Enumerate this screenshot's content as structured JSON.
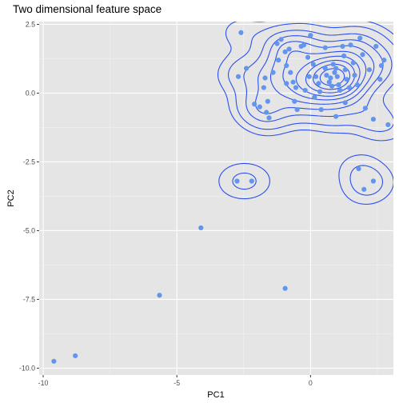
{
  "chart_data": {
    "type": "scatter",
    "title": "Two dimensional feature space",
    "xlabel": "PC1",
    "ylabel": "PC2",
    "xlim": [
      -10.15,
      3.1
    ],
    "ylim": [
      -10.25,
      2.6
    ],
    "x_ticks": [
      -10,
      -5,
      0
    ],
    "x_tick_labels": [
      "-10",
      "-5",
      "0"
    ],
    "y_ticks": [
      2.5,
      0,
      -2.5,
      -5,
      -7.5,
      -10
    ],
    "y_tick_labels": [
      "2.5",
      "0.0",
      "-2.5",
      "-5.0",
      "-7.5",
      "-10.0"
    ],
    "grid": true,
    "point_color": "#6495ed",
    "contour_color": "#2b50f0",
    "panel_background": "#e5e5e5",
    "points": [
      {
        "x": -9.6,
        "y": -9.75
      },
      {
        "x": -8.8,
        "y": -9.55
      },
      {
        "x": -5.65,
        "y": -7.35
      },
      {
        "x": -4.1,
        "y": -4.9
      },
      {
        "x": -2.75,
        "y": -3.2
      },
      {
        "x": -2.2,
        "y": -3.2
      },
      {
        "x": -0.95,
        "y": -7.1
      },
      {
        "x": 1.8,
        "y": -2.75
      },
      {
        "x": 2.0,
        "y": -3.5
      },
      {
        "x": 2.35,
        "y": -3.2
      },
      {
        "x": -2.6,
        "y": 2.2
      },
      {
        "x": -2.7,
        "y": 0.6
      },
      {
        "x": -2.4,
        "y": 0.9
      },
      {
        "x": -2.1,
        "y": -0.4
      },
      {
        "x": -1.9,
        "y": -0.5
      },
      {
        "x": -1.65,
        "y": -0.7
      },
      {
        "x": -1.55,
        "y": -0.9
      },
      {
        "x": -1.7,
        "y": 0.55
      },
      {
        "x": -1.75,
        "y": 0.2
      },
      {
        "x": -1.6,
        "y": -0.3
      },
      {
        "x": -1.4,
        "y": 0.75
      },
      {
        "x": -1.25,
        "y": 1.8
      },
      {
        "x": -1.1,
        "y": 1.95
      },
      {
        "x": -0.95,
        "y": 1.5
      },
      {
        "x": -0.8,
        "y": 1.6
      },
      {
        "x": -0.9,
        "y": 1.0
      },
      {
        "x": -0.75,
        "y": 0.75
      },
      {
        "x": -0.65,
        "y": 0.4
      },
      {
        "x": -0.9,
        "y": 0.35
      },
      {
        "x": -0.55,
        "y": 0.2
      },
      {
        "x": -0.6,
        "y": -0.3
      },
      {
        "x": -0.5,
        "y": -0.6
      },
      {
        "x": -0.35,
        "y": 1.7
      },
      {
        "x": -0.25,
        "y": 1.75
      },
      {
        "x": -0.1,
        "y": 1.3
      },
      {
        "x": -0.05,
        "y": 0.6
      },
      {
        "x": -0.2,
        "y": 0.1
      },
      {
        "x": 0.0,
        "y": 2.1
      },
      {
        "x": 0.1,
        "y": 1.05
      },
      {
        "x": 0.2,
        "y": 0.6
      },
      {
        "x": 0.3,
        "y": 0.35
      },
      {
        "x": 0.35,
        "y": 0.05
      },
      {
        "x": 0.4,
        "y": -0.6
      },
      {
        "x": 0.55,
        "y": 1.65
      },
      {
        "x": 0.55,
        "y": 0.9
      },
      {
        "x": 0.6,
        "y": 0.65
      },
      {
        "x": 0.75,
        "y": 0.55
      },
      {
        "x": 0.7,
        "y": 0.4
      },
      {
        "x": 0.8,
        "y": 0.25
      },
      {
        "x": 0.85,
        "y": 1.05
      },
      {
        "x": 0.9,
        "y": 0.75
      },
      {
        "x": 0.95,
        "y": 0.9
      },
      {
        "x": 1.0,
        "y": 0.6
      },
      {
        "x": 1.05,
        "y": 0.3
      },
      {
        "x": 1.1,
        "y": 0.1
      },
      {
        "x": 1.2,
        "y": 1.7
      },
      {
        "x": 1.25,
        "y": 1.35
      },
      {
        "x": 1.3,
        "y": 0.85
      },
      {
        "x": 1.35,
        "y": 0.5
      },
      {
        "x": 1.45,
        "y": 0.2
      },
      {
        "x": 1.5,
        "y": 1.75
      },
      {
        "x": 1.6,
        "y": 1.1
      },
      {
        "x": 1.65,
        "y": 0.65
      },
      {
        "x": 1.75,
        "y": 0.3
      },
      {
        "x": 1.85,
        "y": 2.0
      },
      {
        "x": 1.95,
        "y": 1.4
      },
      {
        "x": 2.05,
        "y": -0.55
      },
      {
        "x": 2.2,
        "y": 0.85
      },
      {
        "x": 2.35,
        "y": -0.95
      },
      {
        "x": 2.45,
        "y": 1.7
      },
      {
        "x": 2.6,
        "y": 0.5
      },
      {
        "x": 2.65,
        "y": 1.0
      },
      {
        "x": 2.75,
        "y": 1.2
      },
      {
        "x": 2.9,
        "y": -1.15
      },
      {
        "x": 0.95,
        "y": -0.85
      },
      {
        "x": 1.3,
        "y": -0.35
      },
      {
        "x": 0.15,
        "y": -0.15
      },
      {
        "x": -1.2,
        "y": 1.2
      }
    ]
  }
}
